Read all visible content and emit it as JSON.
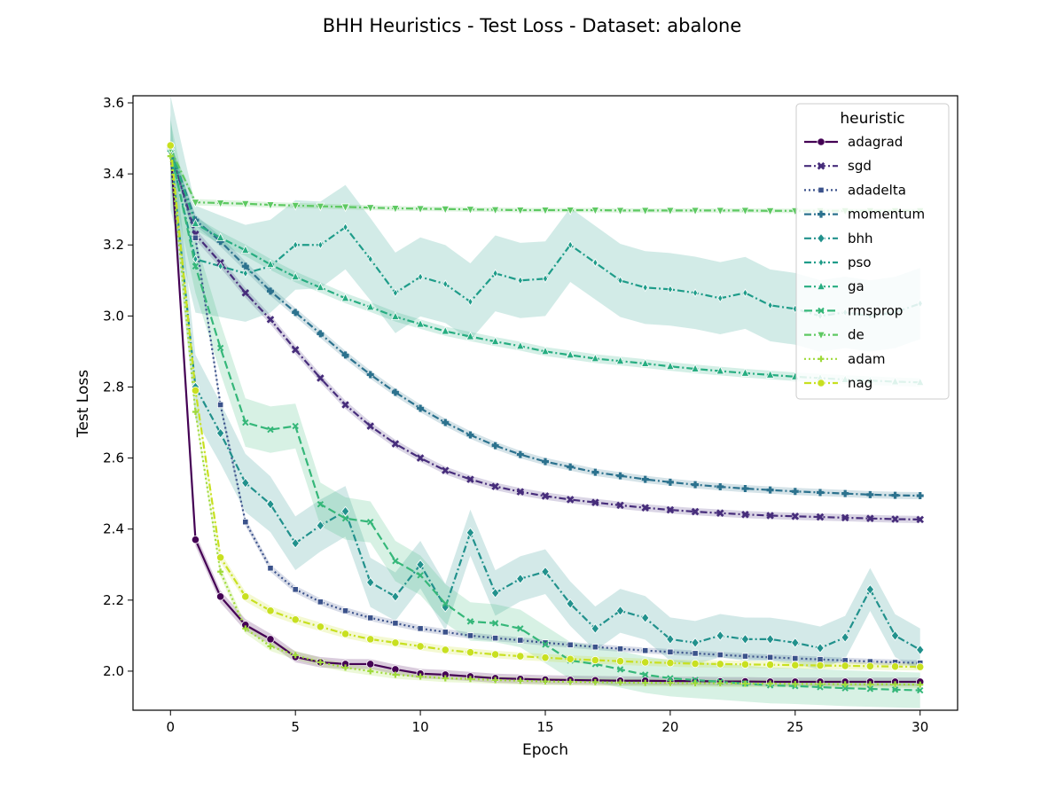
{
  "chart_data": {
    "type": "line",
    "title": "BHH Heuristics - Test Loss - Dataset: abalone",
    "xlabel": "Epoch",
    "ylabel": "Test Loss",
    "xlim": [
      -1.5,
      31.5
    ],
    "ylim": [
      1.89,
      3.62
    ],
    "xticks": [
      0,
      5,
      10,
      15,
      20,
      25,
      30
    ],
    "yticks": [
      2.0,
      2.2,
      2.4,
      2.6,
      2.8,
      3.0,
      3.2,
      3.4,
      3.6
    ],
    "xtick_labels": [
      "0",
      "5",
      "10",
      "15",
      "20",
      "25",
      "30"
    ],
    "ytick_labels": [
      "2.0",
      "2.2",
      "2.4",
      "2.6",
      "2.8",
      "3.0",
      "3.2",
      "3.4",
      "3.6"
    ],
    "grid": false,
    "legend": {
      "title": "heuristic",
      "position": "top-right"
    },
    "series": [
      {
        "name": "adagrad",
        "color": "#440154",
        "dash": "solid",
        "marker": "circle",
        "band": 0.012,
        "values": [
          3.48,
          2.37,
          2.21,
          2.13,
          2.09,
          2.04,
          2.025,
          2.02,
          2.02,
          2.005,
          1.993,
          1.99,
          1.985,
          1.98,
          1.978,
          1.976,
          1.975,
          1.974,
          1.973,
          1.973,
          1.972,
          1.972,
          1.971,
          1.971,
          1.97,
          1.97,
          1.97,
          1.97,
          1.97,
          1.97,
          1.97
        ]
      },
      {
        "name": "sgd",
        "color": "#472d7b",
        "dash": "dashdot",
        "marker": "x",
        "band": 0.01,
        "values": [
          3.47,
          3.23,
          3.15,
          3.065,
          2.99,
          2.905,
          2.825,
          2.75,
          2.69,
          2.64,
          2.6,
          2.565,
          2.54,
          2.52,
          2.505,
          2.493,
          2.483,
          2.475,
          2.467,
          2.46,
          2.454,
          2.449,
          2.445,
          2.441,
          2.438,
          2.436,
          2.434,
          2.432,
          2.43,
          2.428,
          2.427
        ]
      },
      {
        "name": "adadelta",
        "color": "#3b528b",
        "dash": "dotted",
        "marker": "square",
        "band": 0.008,
        "values": [
          3.47,
          3.22,
          2.75,
          2.42,
          2.29,
          2.23,
          2.195,
          2.17,
          2.15,
          2.135,
          2.12,
          2.11,
          2.1,
          2.093,
          2.087,
          2.08,
          2.074,
          2.068,
          2.063,
          2.058,
          2.054,
          2.05,
          2.046,
          2.042,
          2.039,
          2.036,
          2.033,
          2.03,
          2.027,
          2.025,
          2.023
        ]
      },
      {
        "name": "momentum",
        "color": "#2c728e",
        "dash": "dashdot",
        "marker": "plus",
        "band": 0.01,
        "values": [
          3.47,
          3.27,
          3.21,
          3.14,
          3.07,
          3.01,
          2.95,
          2.89,
          2.835,
          2.785,
          2.74,
          2.7,
          2.665,
          2.635,
          2.61,
          2.59,
          2.575,
          2.56,
          2.55,
          2.54,
          2.532,
          2.525,
          2.519,
          2.514,
          2.51,
          2.506,
          2.503,
          2.5,
          2.497,
          2.495,
          2.494
        ]
      },
      {
        "name": "bhh",
        "color": "#21918c",
        "dash": "dashdot",
        "marker": "diamond",
        "band": 0.06,
        "values": [
          3.47,
          2.8,
          2.67,
          2.53,
          2.47,
          2.36,
          2.41,
          2.45,
          2.25,
          2.21,
          2.3,
          2.18,
          2.39,
          2.22,
          2.26,
          2.28,
          2.19,
          2.12,
          2.17,
          2.15,
          2.09,
          2.08,
          2.1,
          2.09,
          2.09,
          2.08,
          2.065,
          2.095,
          2.23,
          2.1,
          2.06
        ]
      },
      {
        "name": "pso",
        "color": "#1e9c89",
        "dash": "dashdot",
        "marker": "diamond-thin",
        "band": 0.1,
        "values": [
          3.46,
          3.16,
          3.14,
          3.12,
          3.14,
          3.2,
          3.2,
          3.25,
          3.16,
          3.065,
          3.11,
          3.09,
          3.04,
          3.12,
          3.1,
          3.105,
          3.2,
          3.15,
          3.1,
          3.08,
          3.075,
          3.065,
          3.05,
          3.065,
          3.03,
          3.02,
          3.0,
          3.01,
          3.0,
          3.01,
          3.035
        ]
      },
      {
        "name": "ga",
        "color": "#27ad81",
        "dash": "dashdot",
        "marker": "triangle-up",
        "band": 0.012,
        "values": [
          3.47,
          3.26,
          3.22,
          3.185,
          3.145,
          3.11,
          3.08,
          3.05,
          3.025,
          2.998,
          2.977,
          2.957,
          2.942,
          2.928,
          2.915,
          2.9,
          2.89,
          2.88,
          2.873,
          2.866,
          2.858,
          2.851,
          2.845,
          2.839,
          2.834,
          2.829,
          2.825,
          2.821,
          2.818,
          2.815,
          2.813
        ]
      },
      {
        "name": "rmsprop",
        "color": "#35b779",
        "dash": "dashed",
        "marker": "x-thin",
        "band": 0.05,
        "values": [
          3.47,
          3.14,
          2.91,
          2.7,
          2.68,
          2.69,
          2.47,
          2.43,
          2.42,
          2.31,
          2.27,
          2.19,
          2.14,
          2.135,
          2.12,
          2.075,
          2.03,
          2.02,
          2.005,
          1.99,
          1.98,
          1.975,
          1.97,
          1.965,
          1.96,
          1.958,
          1.955,
          1.952,
          1.95,
          1.948,
          1.946
        ]
      },
      {
        "name": "de",
        "color": "#5ec962",
        "dash": "dashdot",
        "marker": "triangle-down",
        "band": 0.006,
        "values": [
          3.47,
          3.32,
          3.318,
          3.316,
          3.313,
          3.311,
          3.309,
          3.307,
          3.305,
          3.303,
          3.302,
          3.301,
          3.3,
          3.299,
          3.298,
          3.298,
          3.298,
          3.298,
          3.297,
          3.297,
          3.297,
          3.297,
          3.297,
          3.297,
          3.296,
          3.296,
          3.296,
          3.296,
          3.296,
          3.296,
          3.296
        ]
      },
      {
        "name": "adam",
        "color": "#9fda3a",
        "dash": "dotted",
        "marker": "plus-thin",
        "band": 0.01,
        "values": [
          3.45,
          2.73,
          2.28,
          2.12,
          2.07,
          2.045,
          2.025,
          2.01,
          2.0,
          1.99,
          1.985,
          1.98,
          1.978,
          1.975,
          1.973,
          1.971,
          1.97,
          1.969,
          1.968,
          1.967,
          1.967,
          1.966,
          1.966,
          1.965,
          1.965,
          1.964,
          1.964,
          1.963,
          1.963,
          1.963,
          1.962
        ]
      },
      {
        "name": "nag",
        "color": "#c8e020",
        "dash": "dashdot",
        "marker": "circle",
        "band": 0.01,
        "values": [
          3.48,
          2.79,
          2.32,
          2.21,
          2.17,
          2.145,
          2.125,
          2.105,
          2.09,
          2.08,
          2.07,
          2.06,
          2.053,
          2.047,
          2.042,
          2.038,
          2.034,
          2.031,
          2.028,
          2.025,
          2.023,
          2.021,
          2.02,
          2.019,
          2.018,
          2.017,
          2.016,
          2.015,
          2.014,
          2.013,
          2.012
        ]
      }
    ]
  }
}
